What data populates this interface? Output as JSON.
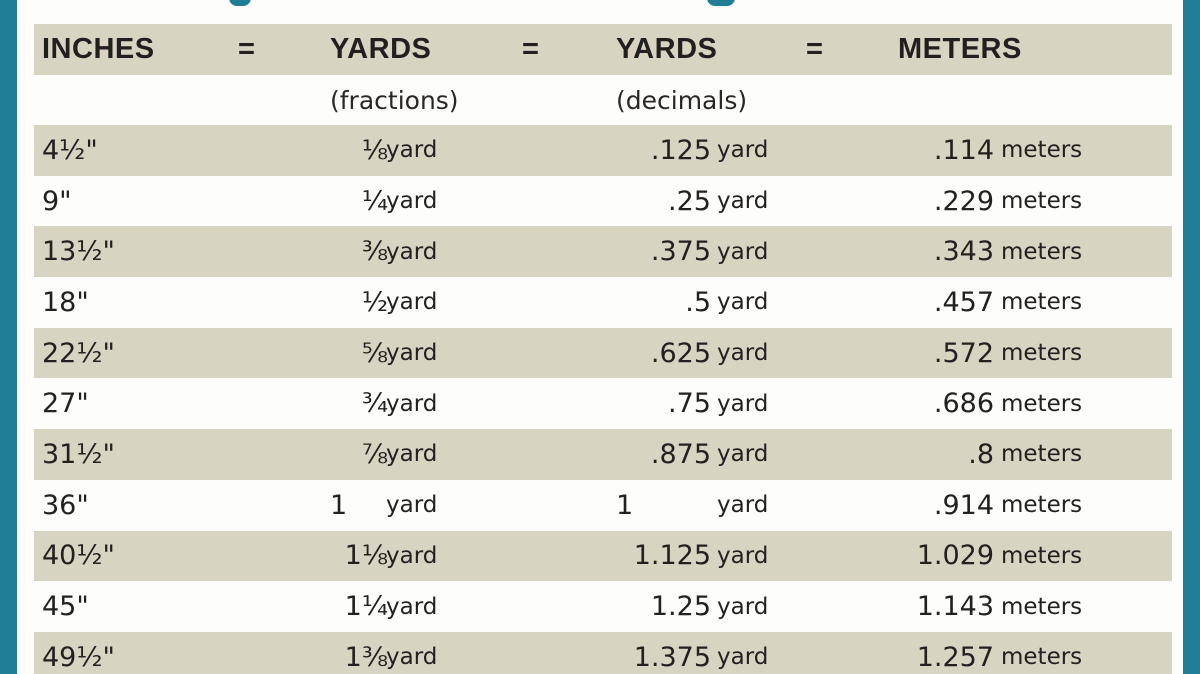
{
  "header": {
    "col1": "INCHES",
    "eq1": "=",
    "col2": "YARDS",
    "eq2": "=",
    "col3": "YARDS",
    "eq3": "=",
    "col4": "METERS"
  },
  "subheader": {
    "fractions": "(fractions)",
    "decimals": "(decimals)"
  },
  "rows": [
    {
      "inches": "4½\"",
      "frac": "⅛",
      "frac_unit": "yard",
      "dec": ".125",
      "dec_unit": "yard",
      "meters": ".114",
      "meters_unit": "meters"
    },
    {
      "inches": "9\"",
      "frac": "¼",
      "frac_unit": "yard",
      "dec": ".25",
      "dec_unit": "yard",
      "meters": ".229",
      "meters_unit": "meters"
    },
    {
      "inches": "13½\"",
      "frac": "⅜",
      "frac_unit": "yard",
      "dec": ".375",
      "dec_unit": "yard",
      "meters": ".343",
      "meters_unit": "meters"
    },
    {
      "inches": "18\"",
      "frac": "½",
      "frac_unit": "yard",
      "dec": ".5",
      "dec_unit": "yard",
      "meters": ".457",
      "meters_unit": "meters"
    },
    {
      "inches": "22½\"",
      "frac": "⅝",
      "frac_unit": "yard",
      "dec": ".625",
      "dec_unit": "yard",
      "meters": ".572",
      "meters_unit": "meters"
    },
    {
      "inches": "27\"",
      "frac": "¾",
      "frac_unit": "yard",
      "dec": ".75",
      "dec_unit": "yard",
      "meters": ".686",
      "meters_unit": "meters"
    },
    {
      "inches": "31½\"",
      "frac": "⅞",
      "frac_unit": "yard",
      "dec": ".875",
      "dec_unit": "yard",
      "meters": ".8",
      "meters_unit": "meters"
    },
    {
      "inches": "36\"",
      "frac": "1",
      "frac_unit": "yard",
      "dec": "1",
      "dec_unit": "yard",
      "meters": ".914",
      "meters_unit": "meters"
    },
    {
      "inches": "40½\"",
      "frac": "1⅛",
      "frac_unit": "yard",
      "dec": "1.125",
      "dec_unit": "yard",
      "meters": "1.029",
      "meters_unit": "meters"
    },
    {
      "inches": "45\"",
      "frac": "1¼",
      "frac_unit": "yard",
      "dec": "1.25",
      "dec_unit": "yard",
      "meters": "1.143",
      "meters_unit": "meters"
    },
    {
      "inches": "49½\"",
      "frac": "1⅜",
      "frac_unit": "yard",
      "dec": "1.375",
      "dec_unit": "yard",
      "meters": "1.257",
      "meters_unit": "meters"
    }
  ],
  "colors": {
    "frame": "#1f7e96",
    "row_shade": "#d8d4c2",
    "row_plain": "#fdfdfb",
    "text": "#232020"
  }
}
